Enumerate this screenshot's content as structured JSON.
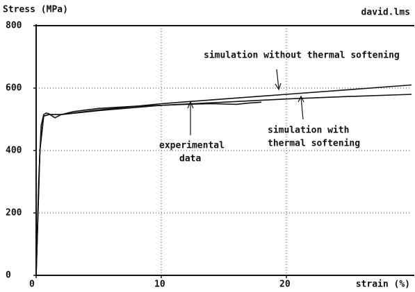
{
  "chart_data": {
    "type": "line",
    "title": "Stress (MPa)",
    "subtitle": "david.lms",
    "x_label": "strain (%)",
    "xlim": [
      0,
      30
    ],
    "ylim": [
      0,
      800
    ],
    "xticks": [
      0,
      10,
      20
    ],
    "yticks": [
      0,
      200,
      400,
      600,
      800
    ],
    "grid": true,
    "series": [
      {
        "name": "experimental data",
        "color": "#111111",
        "x": [
          0,
          0.2,
          0.4,
          0.6,
          0.8,
          1.0,
          1.5,
          2,
          3,
          5,
          8,
          10,
          12,
          14,
          16,
          17,
          18
        ],
        "values": [
          0,
          300,
          480,
          515,
          520,
          518,
          505,
          515,
          525,
          535,
          542,
          545,
          548,
          550,
          548,
          552,
          555
        ]
      },
      {
        "name": "simulation without thermal softening",
        "color": "#111111",
        "x": [
          0,
          0.3,
          0.6,
          1,
          2,
          5,
          10,
          15,
          20,
          25,
          30
        ],
        "values": [
          0,
          400,
          510,
          515,
          515,
          530,
          550,
          565,
          580,
          595,
          610
        ]
      },
      {
        "name": "simulation with thermal softening",
        "color": "#111111",
        "x": [
          0,
          0.3,
          0.6,
          1,
          2,
          5,
          10,
          15,
          20,
          25,
          30
        ],
        "values": [
          0,
          400,
          510,
          515,
          515,
          528,
          545,
          555,
          565,
          573,
          580
        ]
      }
    ],
    "annotations": [
      {
        "text": [
          "simulation without thermal softening"
        ]
      },
      {
        "text": [
          "simulation with",
          "thermal softening"
        ]
      },
      {
        "text": [
          "experimental",
          "data"
        ]
      }
    ]
  }
}
